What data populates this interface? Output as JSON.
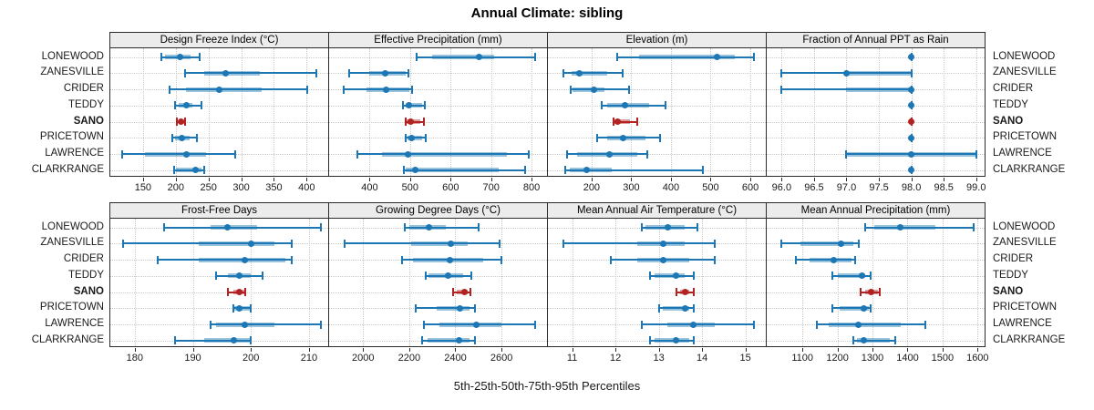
{
  "title": "Annual Climate: sibling",
  "xlabel": "5th-25th-50th-75th-95th Percentiles",
  "sites": [
    "LONEWOOD",
    "ZANESVILLE",
    "CRIDER",
    "TEDDY",
    "SANO",
    "PRICETOWN",
    "LAWRENCE",
    "CLARKRANGE"
  ],
  "highlight_site": "SANO",
  "percentile_labels": [
    "5th",
    "25th",
    "50th",
    "75th",
    "95th"
  ],
  "colors": {
    "series": "#1c77b4",
    "highlight": "#b22222",
    "strip_bg": "#ececec",
    "grid": "#c9c9c9",
    "border": "#2b2b2b",
    "text": "#1a1a1a"
  },
  "chart_data": {
    "type": "scatter",
    "variant": "percentile-interval-dot-plot",
    "grid": "dotted",
    "legend_position": "none",
    "title": "Annual Climate: sibling",
    "xlabel": "5th-25th-50th-75th-95th Percentiles",
    "rows": [
      "LONEWOOD",
      "ZANESVILLE",
      "CRIDER",
      "TEDDY",
      "SANO",
      "PRICETOWN",
      "LAWRENCE",
      "CLARKRANGE"
    ],
    "panels": [
      {
        "label": "Design Freeze Index (°C)",
        "grid_row": 0,
        "grid_col": 0,
        "xlim": [
          100,
          433
        ],
        "ticks": [
          150,
          200,
          250,
          300,
          350,
          400
        ],
        "tick_labels": [
          "150",
          "200",
          "250",
          "300",
          "350",
          "400"
        ],
        "values": [
          [
            178,
            183,
            207,
            223,
            236
          ],
          [
            214,
            244,
            276,
            329,
            415
          ],
          [
            190,
            216,
            267,
            331,
            401
          ],
          [
            199,
            204,
            217,
            225,
            239
          ],
          [
            202,
            205,
            208,
            213,
            214
          ],
          [
            195,
            199,
            210,
            221,
            233
          ],
          [
            118,
            153,
            216,
            247,
            291
          ],
          [
            197,
            201,
            230,
            239,
            243
          ]
        ]
      },
      {
        "label": "Effective Precipitation (mm)",
        "grid_row": 0,
        "grid_col": 1,
        "xlim": [
          300,
          838
        ],
        "ticks": [
          400,
          500,
          600,
          700,
          800
        ],
        "tick_labels": [
          "400",
          "500",
          "600",
          "700",
          "800"
        ],
        "values": [
          [
            515,
            555,
            670,
            707,
            808
          ],
          [
            350,
            400,
            438,
            488,
            496
          ],
          [
            335,
            392,
            440,
            499,
            505
          ],
          [
            483,
            488,
            498,
            529,
            536
          ],
          [
            488,
            492,
            502,
            525,
            533
          ],
          [
            488,
            494,
            503,
            530,
            538
          ],
          [
            370,
            430,
            494,
            740,
            794
          ],
          [
            485,
            490,
            513,
            718,
            784
          ]
        ]
      },
      {
        "label": "Elevation (m)",
        "grid_row": 0,
        "grid_col": 2,
        "xlim": [
          90,
          639
        ],
        "ticks": [
          200,
          300,
          400,
          500,
          600
        ],
        "tick_labels": [
          "200",
          "300",
          "400",
          "500",
          "600"
        ],
        "values": [
          [
            264,
            319,
            516,
            561,
            610
          ],
          [
            128,
            149,
            170,
            240,
            279
          ],
          [
            147,
            153,
            206,
            232,
            294
          ],
          [
            225,
            240,
            284,
            346,
            387
          ],
          [
            255,
            257,
            266,
            297,
            314
          ],
          [
            215,
            240,
            279,
            335,
            372
          ],
          [
            139,
            164,
            245,
            316,
            340
          ],
          [
            134,
            146,
            188,
            250,
            480
          ]
        ]
      },
      {
        "label": "Fraction of Annual PPT as Rain",
        "grid_row": 0,
        "grid_col": 3,
        "xlim": [
          95.77,
          99.13
        ],
        "ticks": [
          96.0,
          96.5,
          97.0,
          97.5,
          98.0,
          98.5,
          99.0
        ],
        "tick_labels": [
          "96.0",
          "96.5",
          "97.0",
          "97.5",
          "98.0",
          "98.5",
          "99.0"
        ],
        "values": [
          [
            98,
            98,
            98,
            98,
            98
          ],
          [
            96,
            97,
            97,
            98,
            98
          ],
          [
            96,
            97,
            98,
            98,
            98
          ],
          [
            98,
            98,
            98,
            98,
            98
          ],
          [
            98,
            98,
            98,
            98,
            98
          ],
          [
            98,
            98,
            98,
            98,
            98
          ],
          [
            97,
            97,
            98,
            99,
            99
          ],
          [
            98,
            98,
            98,
            98,
            98
          ]
        ]
      },
      {
        "label": "Frost-Free Days",
        "grid_row": 1,
        "grid_col": 0,
        "xlim": [
          175.8,
          213.3
        ],
        "ticks": [
          180,
          190,
          200,
          210
        ],
        "tick_labels": [
          "180",
          "190",
          "200",
          "210"
        ],
        "values": [
          [
            185,
            193,
            196,
            201,
            212
          ],
          [
            178,
            191,
            200,
            204,
            207
          ],
          [
            184,
            191,
            199,
            206,
            207
          ],
          [
            194,
            196,
            198,
            200,
            202
          ],
          [
            196,
            197,
            198,
            199,
            199
          ],
          [
            197,
            197,
            198,
            200,
            200
          ],
          [
            193,
            194,
            199,
            204,
            212
          ],
          [
            187,
            192,
            197,
            200,
            200
          ]
        ]
      },
      {
        "label": "Growing Degree Days (°C)",
        "grid_row": 1,
        "grid_col": 1,
        "xlim": [
          1853,
          2797
        ],
        "ticks": [
          2000,
          2200,
          2400,
          2600
        ],
        "tick_labels": [
          "2000",
          "2200",
          "2400",
          "2600"
        ],
        "values": [
          [
            2180,
            2200,
            2285,
            2360,
            2500
          ],
          [
            1920,
            2210,
            2380,
            2455,
            2590
          ],
          [
            2170,
            2215,
            2375,
            2520,
            2600
          ],
          [
            2270,
            2285,
            2370,
            2435,
            2470
          ],
          [
            2390,
            2405,
            2440,
            2455,
            2465
          ],
          [
            2230,
            2320,
            2420,
            2460,
            2485
          ],
          [
            2265,
            2330,
            2490,
            2600,
            2745
          ],
          [
            2255,
            2280,
            2415,
            2460,
            2485
          ]
        ]
      },
      {
        "label": "Mean Annual Air Temperature (°C)",
        "grid_row": 1,
        "grid_col": 2,
        "xlim": [
          10.44,
          15.47
        ],
        "ticks": [
          11,
          12,
          13,
          14,
          15
        ],
        "tick_labels": [
          "11",
          "12",
          "13",
          "14",
          "15"
        ],
        "values": [
          [
            12.6,
            12.7,
            13.2,
            13.6,
            13.9
          ],
          [
            10.8,
            12.5,
            13.1,
            13.6,
            14.3
          ],
          [
            11.9,
            12.5,
            13.1,
            13.7,
            14.3
          ],
          [
            12.8,
            12.9,
            13.4,
            13.6,
            13.8
          ],
          [
            13.4,
            13.5,
            13.6,
            13.7,
            13.8
          ],
          [
            13.0,
            13.1,
            13.6,
            13.7,
            13.8
          ],
          [
            12.6,
            13.2,
            13.8,
            14.3,
            15.2
          ],
          [
            12.8,
            12.9,
            13.4,
            13.7,
            13.8
          ]
        ]
      },
      {
        "label": "Mean Annual Precipitation (mm)",
        "grid_row": 1,
        "grid_col": 3,
        "xlim": [
          998,
          1620
        ],
        "ticks": [
          1100,
          1200,
          1300,
          1400,
          1500,
          1600
        ],
        "tick_labels": [
          "1100",
          "1200",
          "1300",
          "1400",
          "1500",
          "1600"
        ],
        "values": [
          [
            1280,
            1305,
            1380,
            1480,
            1590
          ],
          [
            1040,
            1095,
            1210,
            1245,
            1260
          ],
          [
            1080,
            1120,
            1190,
            1240,
            1250
          ],
          [
            1185,
            1200,
            1270,
            1280,
            1295
          ],
          [
            1265,
            1280,
            1295,
            1315,
            1320
          ],
          [
            1185,
            1205,
            1275,
            1290,
            1295
          ],
          [
            1140,
            1175,
            1260,
            1380,
            1450
          ],
          [
            1245,
            1255,
            1275,
            1350,
            1365
          ]
        ]
      }
    ]
  }
}
